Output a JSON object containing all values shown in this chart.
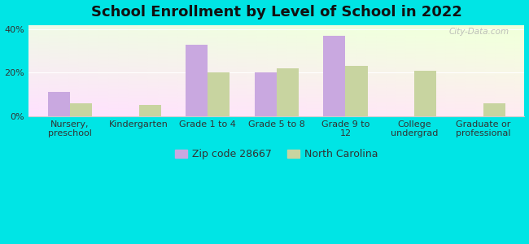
{
  "title": "School Enrollment by Level of School in 2022",
  "categories": [
    "Nursery,\npreschool",
    "Kindergarten",
    "Grade 1 to 4",
    "Grade 5 to 8",
    "Grade 9 to\n12",
    "College\nundergrad",
    "Graduate or\nprofessional"
  ],
  "zip_values": [
    11,
    0,
    33,
    20,
    37,
    0,
    0
  ],
  "nc_values": [
    6,
    5,
    20,
    22,
    23,
    21,
    6
  ],
  "zip_color": "#c9a8e0",
  "nc_color": "#c8d4a0",
  "background_color": "#00e5e5",
  "ylim": [
    0,
    42
  ],
  "yticks": [
    0,
    20,
    40
  ],
  "ytick_labels": [
    "0%",
    "20%",
    "40%"
  ],
  "legend_zip_label": "Zip code 28667",
  "legend_nc_label": "North Carolina",
  "title_fontsize": 13,
  "tick_fontsize": 8,
  "legend_fontsize": 9,
  "watermark_text": "City-Data.com"
}
